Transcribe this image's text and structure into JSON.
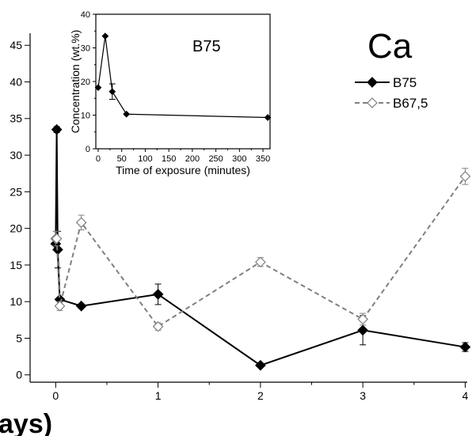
{
  "chart_data": [
    {
      "type": "line",
      "title": "Ca",
      "xlabel": "ays)",
      "ylabel": "",
      "xlim": [
        -0.25,
        4.02
      ],
      "ylim": [
        -1,
        46
      ],
      "x_ticks": [
        0,
        1,
        2,
        3,
        4
      ],
      "y_ticks": [
        0,
        5,
        10,
        15,
        20,
        25,
        30,
        35,
        40,
        45
      ],
      "grid": false,
      "legend_position": "top-right",
      "series": [
        {
          "name": "B75",
          "color": "#000000",
          "marker": "filled-diamond",
          "line": "solid",
          "x": [
            0,
            0.01,
            0.02,
            0.04,
            0.25,
            1,
            2,
            3,
            4
          ],
          "y": [
            17.9,
            33.5,
            17.1,
            10.3,
            9.4,
            11.0,
            1.3,
            6.1,
            3.8
          ],
          "err": [
            0,
            0.4,
            2.5,
            0,
            0,
            1.4,
            0,
            2.0,
            0.6
          ]
        },
        {
          "name": "B67,5",
          "color": "#808080",
          "marker": "open-diamond",
          "line": "dashed",
          "x": [
            0,
            0.01,
            0.04,
            0.25,
            1,
            2,
            3,
            4
          ],
          "y": [
            18.6,
            18.6,
            9.4,
            20.8,
            6.6,
            15.4,
            7.6,
            27.1
          ],
          "err": [
            1.0,
            0,
            0.6,
            1.0,
            0.5,
            0.6,
            0.8,
            1.1
          ]
        }
      ]
    },
    {
      "type": "line",
      "title": "B75",
      "xlabel": "Time of exposure (minutes)",
      "ylabel": "Concentration (wt.%)",
      "xlim": [
        -5,
        365
      ],
      "ylim": [
        0,
        40
      ],
      "x_ticks": [
        0,
        50,
        100,
        150,
        200,
        250,
        300,
        350
      ],
      "y_ticks": [
        0,
        10,
        20,
        30,
        40
      ],
      "grid": false,
      "series": [
        {
          "name": "B75",
          "color": "#000000",
          "marker": "filled-diamond",
          "line": "solid",
          "x": [
            0,
            15,
            30,
            60,
            360
          ],
          "y": [
            18.2,
            33.5,
            17.0,
            10.3,
            9.3
          ],
          "err": [
            0,
            0,
            2.3,
            0,
            0
          ]
        }
      ]
    }
  ]
}
